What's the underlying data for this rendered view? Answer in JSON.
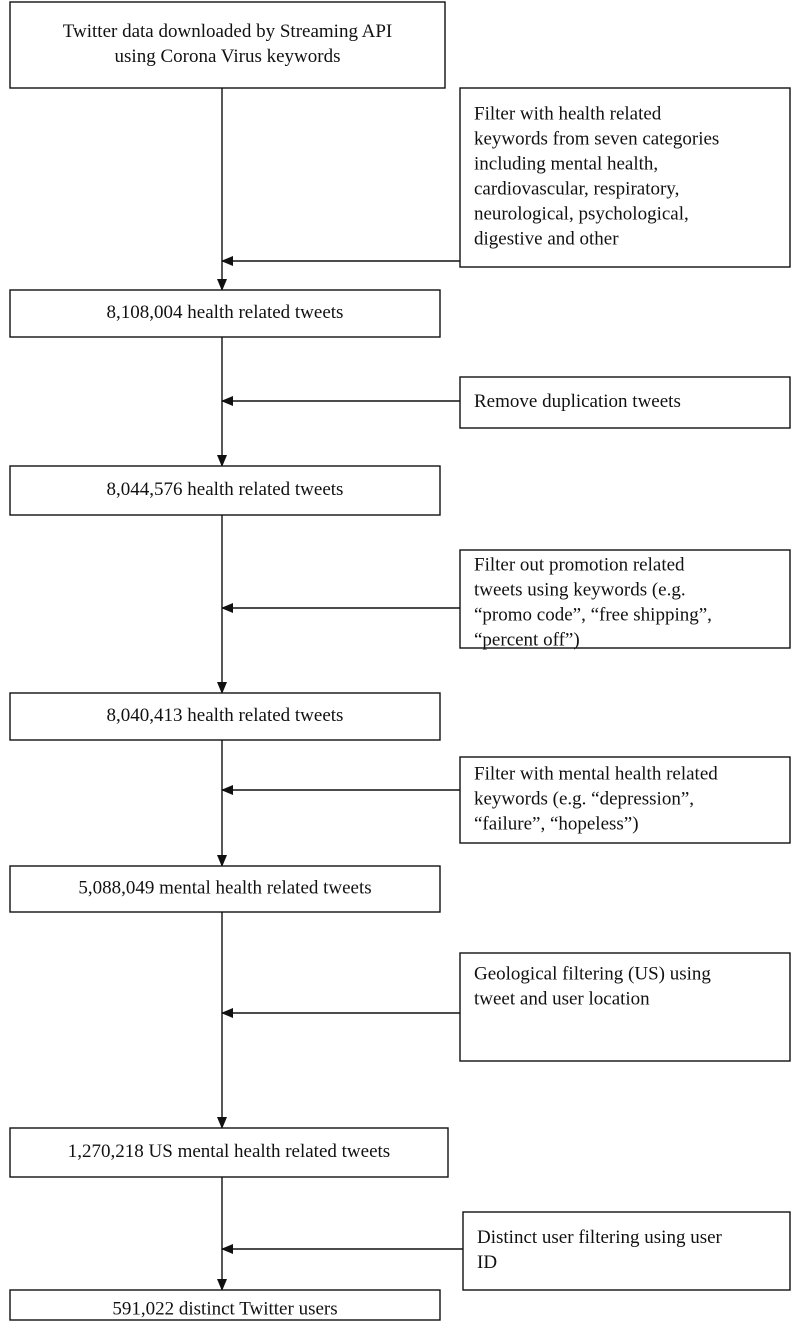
{
  "nodes": [
    {
      "lines": [
        "Twitter data downloaded by Streaming API",
        "using Corona Virus keywords"
      ]
    },
    {
      "lines": [
        "8,108,004 health related tweets"
      ]
    },
    {
      "lines": [
        "8,044,576 health related tweets"
      ]
    },
    {
      "lines": [
        "8,040,413 health related tweets"
      ]
    },
    {
      "lines": [
        "5,088,049 mental health related tweets"
      ]
    },
    {
      "lines": [
        "1,270,218 US mental health related tweets"
      ]
    },
    {
      "lines": [
        "591,022 distinct Twitter users"
      ]
    }
  ],
  "filters": [
    {
      "lines": [
        "Filter with health related",
        "keywords from seven categories",
        "including mental health,",
        "cardiovascular, respiratory,",
        "neurological, psychological,",
        "digestive and other"
      ]
    },
    {
      "lines": [
        "Remove duplication tweets"
      ]
    },
    {
      "lines": [
        "Filter out promotion related",
        "tweets using keywords (e.g.",
        "“promo code”, “free shipping”,",
        "“percent off”)"
      ]
    },
    {
      "lines": [
        "Filter with mental health related",
        "keywords (e.g. “depression”,",
        "“failure”, “hopeless”)"
      ]
    },
    {
      "lines": [
        "Geological filtering (US) using",
        "tweet and user location"
      ]
    },
    {
      "lines": [
        "Distinct user filtering using user",
        "ID"
      ]
    }
  ]
}
